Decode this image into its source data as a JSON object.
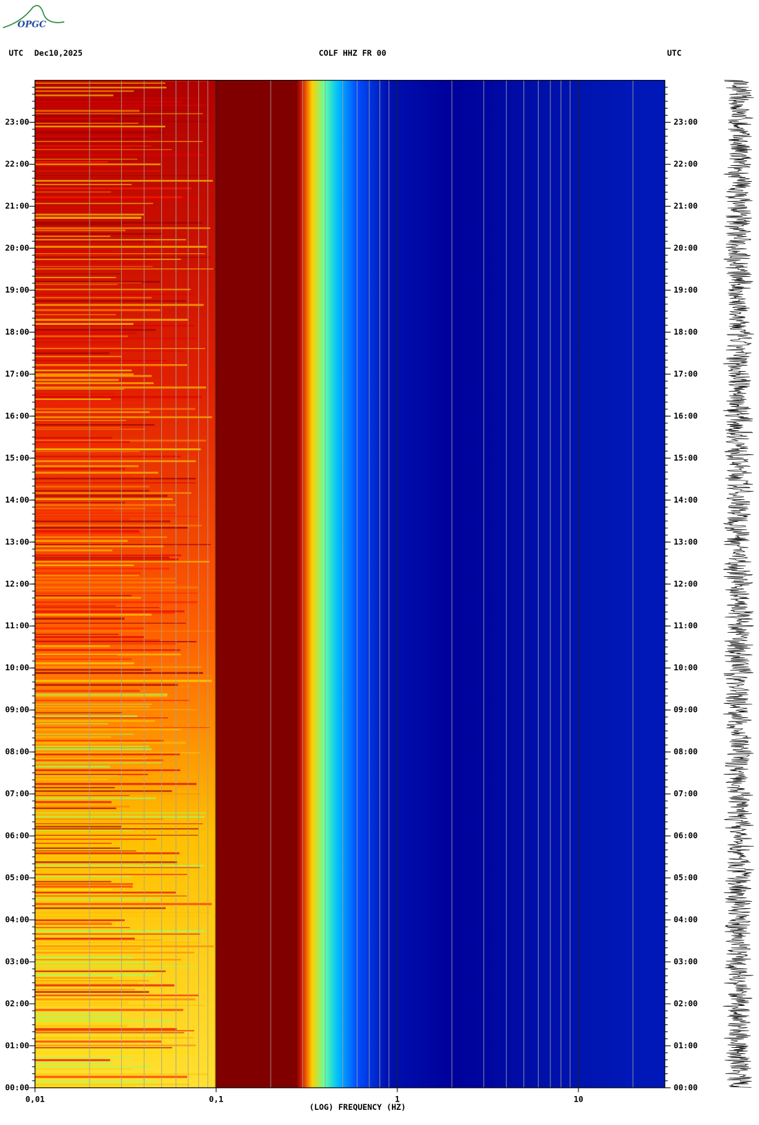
{
  "chart_data": {
    "type": "spectrogram",
    "logo": "OPGC",
    "left_label": "UTC",
    "date": "Dec10,2025",
    "title": "COLF HHZ FR 00",
    "right_label": "UTC",
    "xlabel": "(LOG) FREQUENCY (HZ)",
    "xscale": "log",
    "xlim": [
      0.01,
      30
    ],
    "xticks": [
      {
        "value": 0.01,
        "label": "0,01"
      },
      {
        "value": 0.1,
        "label": "0,1"
      },
      1,
      10
    ],
    "ylim": [
      0,
      24
    ],
    "yticks": [
      {
        "value": 0,
        "label": "00:00"
      },
      {
        "value": 1,
        "label": "01:00"
      },
      {
        "value": 2,
        "label": "02:00"
      },
      {
        "value": 3,
        "label": "03:00"
      },
      {
        "value": 4,
        "label": "04:00"
      },
      {
        "value": 5,
        "label": "05:00"
      },
      {
        "value": 6,
        "label": "06:00"
      },
      {
        "value": 7,
        "label": "07:00"
      },
      {
        "value": 8,
        "label": "08:00"
      },
      {
        "value": 9,
        "label": "09:00"
      },
      {
        "value": 10,
        "label": "10:00"
      },
      {
        "value": 11,
        "label": "11:00"
      },
      {
        "value": 12,
        "label": "12:00"
      },
      {
        "value": 13,
        "label": "13:00"
      },
      {
        "value": 14,
        "label": "14:00"
      },
      {
        "value": 15,
        "label": "15:00"
      },
      {
        "value": 16,
        "label": "16:00"
      },
      {
        "value": 17,
        "label": "17:00"
      },
      {
        "value": 18,
        "label": "18:00"
      },
      {
        "value": 19,
        "label": "19:00"
      },
      {
        "value": 20,
        "label": "20:00"
      },
      {
        "value": 21,
        "label": "21:00"
      },
      {
        "value": 22,
        "label": "22:00"
      },
      {
        "value": 23,
        "label": "23:00"
      }
    ],
    "grid": true
  }
}
